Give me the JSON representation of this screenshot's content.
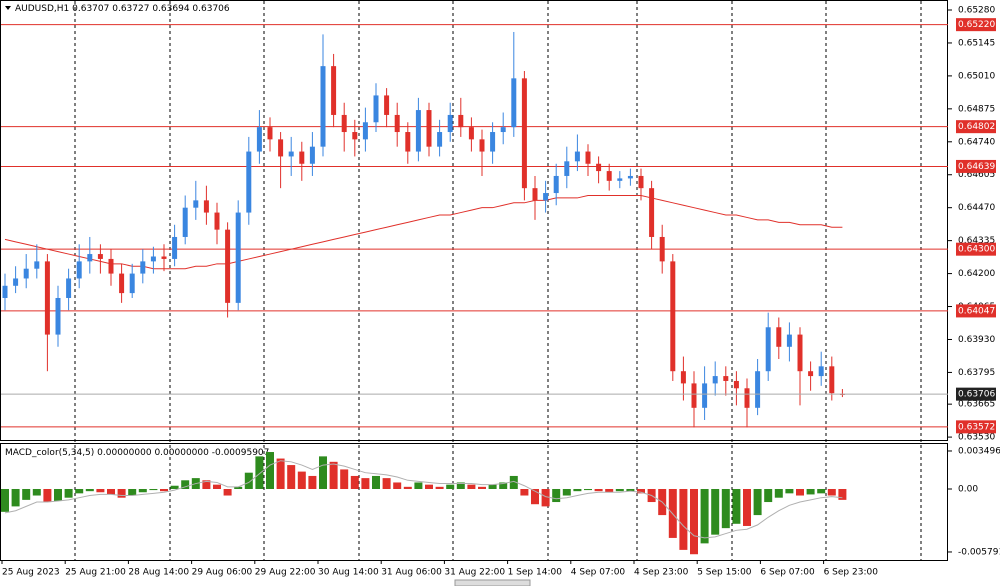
{
  "chart_data": [
    {
      "type": "candlestick",
      "symbol": "AUDUSD,H1",
      "up_color": "#3a86e0",
      "down_color": "#e0302a",
      "candles": [
        [
          0.641,
          0.642,
          0.6405,
          0.6415
        ],
        [
          0.6415,
          0.6423,
          0.6412,
          0.6418
        ],
        [
          0.6418,
          0.6428,
          0.6414,
          0.6422
        ],
        [
          0.6422,
          0.6432,
          0.6418,
          0.6425
        ],
        [
          0.6425,
          0.6428,
          0.638,
          0.6395
        ],
        [
          0.6395,
          0.6415,
          0.639,
          0.641
        ],
        [
          0.641,
          0.6422,
          0.6405,
          0.6418
        ],
        [
          0.6418,
          0.6432,
          0.6414,
          0.6425
        ],
        [
          0.6425,
          0.6435,
          0.642,
          0.6428
        ],
        [
          0.6428,
          0.6432,
          0.642,
          0.6426
        ],
        [
          0.6426,
          0.643,
          0.6415,
          0.642
        ],
        [
          0.642,
          0.6424,
          0.6408,
          0.6412
        ],
        [
          0.6412,
          0.6424,
          0.641,
          0.642
        ],
        [
          0.642,
          0.643,
          0.6416,
          0.6425
        ],
        [
          0.6425,
          0.6431,
          0.642,
          0.6427
        ],
        [
          0.6427,
          0.6432,
          0.6421,
          0.6426
        ],
        [
          0.6426,
          0.644,
          0.6423,
          0.6435
        ],
        [
          0.6435,
          0.6452,
          0.6432,
          0.6447
        ],
        [
          0.6447,
          0.6458,
          0.6442,
          0.645
        ],
        [
          0.645,
          0.6456,
          0.644,
          0.6445
        ],
        [
          0.6445,
          0.6449,
          0.6432,
          0.6438
        ],
        [
          0.6438,
          0.6441,
          0.6402,
          0.6408
        ],
        [
          0.6408,
          0.645,
          0.6405,
          0.6445
        ],
        [
          0.6445,
          0.6476,
          0.644,
          0.647
        ],
        [
          0.647,
          0.6487,
          0.6465,
          0.648
        ],
        [
          0.648,
          0.6484,
          0.647,
          0.6475
        ],
        [
          0.6475,
          0.6478,
          0.6455,
          0.6468
        ],
        [
          0.6468,
          0.6476,
          0.646,
          0.647
        ],
        [
          0.647,
          0.6474,
          0.6458,
          0.6465
        ],
        [
          0.6465,
          0.6478,
          0.646,
          0.6472
        ],
        [
          0.6472,
          0.6518,
          0.6468,
          0.6505
        ],
        [
          0.6505,
          0.651,
          0.648,
          0.6485
        ],
        [
          0.6485,
          0.649,
          0.647,
          0.6478
        ],
        [
          0.6478,
          0.6483,
          0.6468,
          0.6475
        ],
        [
          0.6475,
          0.6488,
          0.647,
          0.6482
        ],
        [
          0.6482,
          0.6498,
          0.6478,
          0.6493
        ],
        [
          0.6493,
          0.6496,
          0.648,
          0.6485
        ],
        [
          0.6485,
          0.649,
          0.6472,
          0.6478
        ],
        [
          0.6478,
          0.6482,
          0.6465,
          0.647
        ],
        [
          0.647,
          0.6492,
          0.6466,
          0.6487
        ],
        [
          0.6487,
          0.649,
          0.6468,
          0.6472
        ],
        [
          0.6472,
          0.6483,
          0.6468,
          0.6478
        ],
        [
          0.6478,
          0.649,
          0.6474,
          0.6485
        ],
        [
          0.6485,
          0.6492,
          0.6476,
          0.648
        ],
        [
          0.648,
          0.6484,
          0.647,
          0.6475
        ],
        [
          0.6475,
          0.6479,
          0.646,
          0.647
        ],
        [
          0.647,
          0.6482,
          0.6465,
          0.6478
        ],
        [
          0.6478,
          0.6486,
          0.6473,
          0.648
        ],
        [
          0.648,
          0.6519,
          0.6476,
          0.65
        ],
        [
          0.65,
          0.6503,
          0.645,
          0.6455
        ],
        [
          0.6455,
          0.646,
          0.6442,
          0.645
        ],
        [
          0.645,
          0.6458,
          0.6445,
          0.6453
        ],
        [
          0.6453,
          0.6465,
          0.6448,
          0.646
        ],
        [
          0.646,
          0.6472,
          0.6455,
          0.6466
        ],
        [
          0.6466,
          0.6477,
          0.6462,
          0.647
        ],
        [
          0.647,
          0.6473,
          0.646,
          0.6465
        ],
        [
          0.6465,
          0.6468,
          0.6457,
          0.6462
        ],
        [
          0.6462,
          0.6465,
          0.6454,
          0.6458
        ],
        [
          0.6458,
          0.6462,
          0.6455,
          0.6459
        ],
        [
          0.6459,
          0.6463,
          0.6456,
          0.646
        ],
        [
          0.646,
          0.6463,
          0.645,
          0.6455
        ],
        [
          0.6455,
          0.6458,
          0.643,
          0.6435
        ],
        [
          0.6435,
          0.644,
          0.642,
          0.6425
        ],
        [
          0.6425,
          0.6428,
          0.6376,
          0.638
        ],
        [
          0.638,
          0.6386,
          0.6368,
          0.6375
        ],
        [
          0.6375,
          0.638,
          0.6357,
          0.6365
        ],
        [
          0.6365,
          0.6382,
          0.636,
          0.6375
        ],
        [
          0.6375,
          0.6384,
          0.637,
          0.6378
        ],
        [
          0.6378,
          0.6382,
          0.637,
          0.6376
        ],
        [
          0.6376,
          0.638,
          0.6366,
          0.6373
        ],
        [
          0.6373,
          0.6377,
          0.6357,
          0.6365
        ],
        [
          0.6365,
          0.6385,
          0.6362,
          0.638
        ],
        [
          0.638,
          0.6404,
          0.6376,
          0.6398
        ],
        [
          0.6398,
          0.6402,
          0.6385,
          0.639
        ],
        [
          0.639,
          0.64,
          0.6384,
          0.6395
        ],
        [
          0.6395,
          0.6398,
          0.6366,
          0.638
        ],
        [
          0.638,
          0.6384,
          0.6372,
          0.6378
        ],
        [
          0.6378,
          0.6388,
          0.6374,
          0.6382
        ],
        [
          0.6382,
          0.6386,
          0.6368,
          0.6371
        ],
        [
          0.63707,
          0.63727,
          0.63694,
          0.63706
        ]
      ],
      "ma": {
        "color": "#e0302a",
        "values": [
          0.6434,
          0.6433,
          0.6432,
          0.6431,
          0.643,
          0.6429,
          0.6428,
          0.6427,
          0.6426,
          0.6425,
          0.6424,
          0.6424,
          0.6423,
          0.6423,
          0.6422,
          0.6422,
          0.6422,
          0.6422,
          0.6423,
          0.6423,
          0.6424,
          0.6424,
          0.6425,
          0.6426,
          0.6427,
          0.6428,
          0.6429,
          0.643,
          0.6431,
          0.6432,
          0.6433,
          0.6434,
          0.6435,
          0.6436,
          0.6437,
          0.6438,
          0.6439,
          0.644,
          0.6441,
          0.6442,
          0.6443,
          0.6444,
          0.6444,
          0.6445,
          0.6446,
          0.6447,
          0.6447,
          0.6448,
          0.6449,
          0.6449,
          0.645,
          0.645,
          0.6451,
          0.6451,
          0.6451,
          0.6452,
          0.6452,
          0.6452,
          0.6452,
          0.6452,
          0.6452,
          0.6451,
          0.645,
          0.6449,
          0.6448,
          0.6447,
          0.6446,
          0.6445,
          0.6444,
          0.6444,
          0.6443,
          0.6442,
          0.6442,
          0.6441,
          0.6441,
          0.644,
          0.644,
          0.644,
          0.6439,
          0.6439
        ]
      },
      "ylim": [
        0.63514,
        0.65321
      ],
      "yticks": [
        {
          "value": 0.6528,
          "label": "0.65280"
        },
        0.65145,
        {
          "value": 0.6501,
          "label": "0.65010"
        },
        0.64875,
        {
          "value": 0.6474,
          "label": "0.64740"
        },
        0.64605,
        {
          "value": 0.6447,
          "label": "0.64470"
        },
        0.64335,
        {
          "value": 0.642,
          "label": "0.64200"
        },
        0.64065,
        {
          "value": 0.6393,
          "label": "0.63930"
        },
        0.63795,
        0.63665,
        {
          "value": 0.6353,
          "label": "0.63530"
        }
      ],
      "levels": [
        {
          "value": 0.6522,
          "label": "0.65220"
        },
        {
          "value": 0.64802,
          "label": "0.64802"
        },
        {
          "value": 0.64639,
          "label": "0.64639"
        },
        {
          "value": 0.643,
          "label": "0.64300"
        },
        {
          "value": 0.64047,
          "label": "0.64047"
        },
        {
          "value": 0.63572,
          "label": "0.63572"
        }
      ],
      "level_color": "#e0302a"
    },
    {
      "type": "macd",
      "title": "MACD_color(5,34,5)",
      "readouts": [
        "0.00000000",
        "0.00000000",
        "-0.00095907"
      ],
      "up_color": "#2e8b1e",
      "down_color": "#e0302a",
      "signal_color": "#b0b0b0",
      "values": [
        -0.0021,
        -0.0016,
        -0.001,
        -0.0006,
        -0.0012,
        -0.0011,
        -0.0008,
        -0.0004,
        -0.0002,
        -0.0003,
        -0.0005,
        -0.0008,
        -0.0006,
        -0.0003,
        -0.0001,
        -0.0002,
        0.0003,
        0.0008,
        0.001,
        0.0008,
        0.0004,
        -0.0006,
        0.0002,
        0.0015,
        0.003,
        0.0034,
        0.0028,
        0.0022,
        0.0016,
        0.0012,
        0.003,
        0.0025,
        0.0018,
        0.0012,
        0.001,
        0.0012,
        0.001,
        0.0006,
        0.0002,
        0.0006,
        0.0004,
        0.0002,
        0.0004,
        0.0006,
        0.0004,
        0.0002,
        0.0004,
        0.0006,
        0.0012,
        -0.0006,
        -0.0014,
        -0.0016,
        -0.0012,
        -0.0006,
        -0.0002,
        -0.0001,
        -0.0002,
        -0.0003,
        -0.0002,
        -0.0002,
        -0.0004,
        -0.0012,
        -0.0024,
        -0.0045,
        -0.0056,
        -0.006,
        -0.005,
        -0.0042,
        -0.0036,
        -0.0032,
        -0.0034,
        -0.0024,
        -0.0012,
        -0.0008,
        -0.0004,
        -0.0006,
        -0.0005,
        -0.0004,
        -0.0006,
        -0.001
      ],
      "signal": [
        -0.0022,
        -0.002,
        -0.0016,
        -0.0012,
        -0.0012,
        -0.0011,
        -0.001,
        -0.0008,
        -0.0006,
        -0.0005,
        -0.0005,
        -0.0006,
        -0.0006,
        -0.0005,
        -0.0004,
        -0.0003,
        -0.0001,
        0.0002,
        0.0005,
        0.0007,
        0.0006,
        0.0002,
        0.0002,
        0.0006,
        0.0014,
        0.0022,
        0.0026,
        0.0025,
        0.0022,
        0.0018,
        0.0022,
        0.0023,
        0.0021,
        0.0018,
        0.0015,
        0.0014,
        0.0013,
        0.0011,
        0.0008,
        0.0007,
        0.0006,
        0.0005,
        0.0005,
        0.0005,
        0.0005,
        0.0004,
        0.0004,
        0.0005,
        0.0007,
        0.0003,
        -0.0002,
        -0.0007,
        -0.0009,
        -0.0008,
        -0.0006,
        -0.0004,
        -0.0003,
        -0.0003,
        -0.0003,
        -0.0002,
        -0.0003,
        -0.0006,
        -0.0012,
        -0.0023,
        -0.0034,
        -0.0043,
        -0.0045,
        -0.0044,
        -0.0041,
        -0.0038,
        -0.0037,
        -0.0033,
        -0.0026,
        -0.002,
        -0.0015,
        -0.0012,
        -0.001,
        -0.0008,
        -0.0007,
        -0.0008
      ],
      "ylim": [
        -0.00653,
        0.00423
      ],
      "yticks": [
        0.0034961,
        {
          "value": 0,
          "label": "0.00"
        },
        -0.0057913
      ]
    }
  ],
  "time_axis": {
    "labels": [
      "25 Aug 2023",
      "25 Aug 21:00",
      "28 Aug 14:00",
      "29 Aug 06:00",
      "29 Aug 22:00",
      "30 Aug 14:00",
      "31 Aug 06:00",
      "31 Aug 22:00",
      "1 Sep 14:00",
      "4 Sep 07:00",
      "4 Sep 23:00",
      "5 Sep 15:00",
      "6 Sep 07:00",
      "6 Sep 23:00"
    ]
  }
}
